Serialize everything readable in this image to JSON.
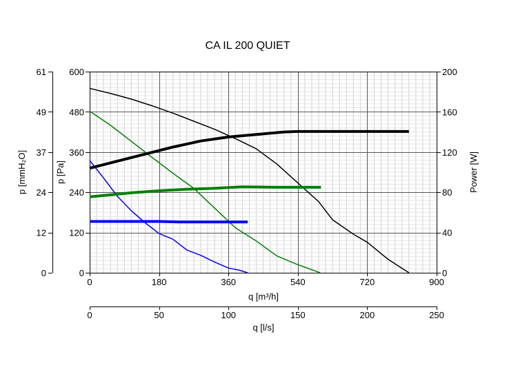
{
  "chart_data": {
    "type": "line",
    "title": "CA IL 200 QUIET",
    "x_axis": {
      "label": "q [m³/h]",
      "ticks": [
        0,
        180,
        360,
        540,
        720,
        900
      ],
      "range": [
        0,
        900
      ]
    },
    "x2_axis": {
      "label": "q [l/s]",
      "ticks": [
        0,
        50,
        100,
        150,
        200,
        250
      ],
      "range": [
        0,
        250
      ]
    },
    "y_axis": {
      "label": "p [Pa]",
      "ticks": [
        0,
        120,
        240,
        360,
        480,
        600
      ],
      "range": [
        0,
        600
      ]
    },
    "y_left_outer_axis": {
      "label": "p [mmH₂O]",
      "ticks": [
        0,
        12,
        24,
        37,
        49,
        61
      ],
      "range": [
        0,
        61
      ]
    },
    "y_right_axis": {
      "label": "Power [W]",
      "ticks": [
        0,
        40,
        80,
        120,
        160,
        200
      ],
      "range": [
        0,
        200
      ]
    },
    "grid": true,
    "series": [
      {
        "axis": "pressure",
        "color": "#000000",
        "width": 1.5,
        "points": [
          [
            0,
            550
          ],
          [
            54,
            535
          ],
          [
            108,
            518
          ],
          [
            162,
            498
          ],
          [
            216,
            476
          ],
          [
            270,
            452
          ],
          [
            324,
            428
          ],
          [
            378,
            400
          ],
          [
            432,
            370
          ],
          [
            486,
            324
          ],
          [
            540,
            268
          ],
          [
            594,
            212
          ],
          [
            630,
            158
          ],
          [
            684,
            115
          ],
          [
            720,
            91
          ],
          [
            774,
            40
          ],
          [
            828,
            0
          ]
        ]
      },
      {
        "axis": "pressure",
        "color": "#008000",
        "width": 1.5,
        "points": [
          [
            0,
            482
          ],
          [
            54,
            440
          ],
          [
            108,
            392
          ],
          [
            162,
            344
          ],
          [
            216,
            297
          ],
          [
            270,
            252
          ],
          [
            324,
            193
          ],
          [
            378,
            134
          ],
          [
            432,
            95
          ],
          [
            486,
            50
          ],
          [
            540,
            24
          ],
          [
            598,
            0
          ]
        ]
      },
      {
        "axis": "pressure",
        "color": "#0000ff",
        "width": 1.5,
        "points": [
          [
            0,
            335
          ],
          [
            36,
            283
          ],
          [
            72,
            228
          ],
          [
            108,
            185
          ],
          [
            144,
            149
          ],
          [
            180,
            117
          ],
          [
            216,
            100
          ],
          [
            252,
            68
          ],
          [
            288,
            52
          ],
          [
            324,
            32
          ],
          [
            360,
            14
          ],
          [
            387,
            8
          ],
          [
            410,
            0
          ]
        ]
      },
      {
        "axis": "power",
        "color": "#000000",
        "width": 4,
        "points": [
          [
            0,
            104
          ],
          [
            72,
            111
          ],
          [
            144,
            118
          ],
          [
            216,
            125
          ],
          [
            288,
            131
          ],
          [
            360,
            135
          ],
          [
            432,
            137.5
          ],
          [
            504,
            140
          ],
          [
            540,
            140.5
          ],
          [
            630,
            140.5
          ],
          [
            828,
            140.5
          ]
        ]
      },
      {
        "axis": "power",
        "color": "#008000",
        "width": 4,
        "points": [
          [
            0,
            75.5
          ],
          [
            54,
            77.5
          ],
          [
            108,
            79.5
          ],
          [
            180,
            81.5
          ],
          [
            252,
            83
          ],
          [
            324,
            84
          ],
          [
            396,
            85.5
          ],
          [
            480,
            85
          ],
          [
            540,
            85
          ],
          [
            600,
            85
          ]
        ]
      },
      {
        "axis": "power",
        "color": "#0000ff",
        "width": 4,
        "points": [
          [
            0,
            51
          ],
          [
            180,
            51
          ],
          [
            234,
            50.5
          ],
          [
            300,
            50.5
          ],
          [
            360,
            50.5
          ],
          [
            410,
            50.5
          ]
        ]
      }
    ]
  }
}
